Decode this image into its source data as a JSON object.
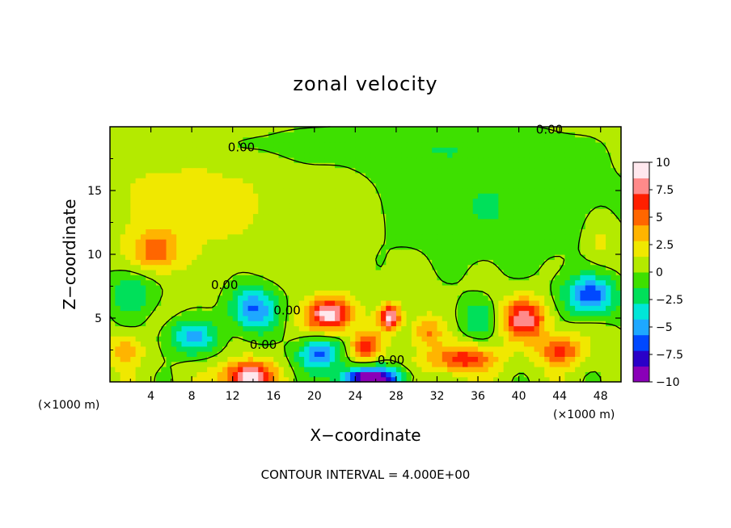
{
  "chart_data": {
    "type": "heatmap",
    "title": "zonal velocity",
    "xlabel": "X−coordinate",
    "ylabel": "Z−coordinate",
    "xunit_left": "(×1000 m)",
    "xunit_right": "(×1000 m)",
    "xlim": [
      0,
      50
    ],
    "ylim": [
      0,
      20
    ],
    "xticks": [
      4,
      8,
      12,
      16,
      20,
      24,
      28,
      32,
      36,
      40,
      44,
      48
    ],
    "xtick_labels": [
      "4",
      "8",
      "12",
      "16",
      "20",
      "24",
      "28",
      "32",
      "36",
      "40",
      "44",
      "48"
    ],
    "yticks": [
      5,
      10,
      15
    ],
    "ytick_labels": [
      "5",
      "10",
      "15"
    ],
    "colorbar": {
      "min": -10,
      "max": 10,
      "ticks": [
        10,
        7.5,
        5,
        2.5,
        0,
        -2.5,
        -5,
        -7.5,
        -10
      ],
      "tick_labels": [
        "10",
        "7.5",
        "5",
        "2.5",
        "0",
        "−2.5",
        "−5",
        "−7.5",
        "−10"
      ],
      "colors": [
        "#8a00b8",
        "#2a00c8",
        "#0048ff",
        "#1ea8ff",
        "#00e6d8",
        "#00e05a",
        "#3ee000",
        "#b4ea00",
        "#f0e800",
        "#ffb400",
        "#ff6600",
        "#ff1f00",
        "#ff8a8a",
        "#ffe8ee"
      ]
    },
    "contour_labels": [
      "0.00",
      "0.00",
      "0.00",
      "0.00",
      "0.00",
      "0.00"
    ],
    "contour_interval": 4,
    "footnote": "CONTOUR INTERVAL = 4.000E+00",
    "blobs": [
      {
        "x": 4.5,
        "z": 10.3,
        "v": 4.5,
        "sx": 2.2,
        "sz": 1.6
      },
      {
        "x": 8,
        "z": 14,
        "v": 1.4,
        "sx": 10,
        "sz": 4
      },
      {
        "x": 2,
        "z": 7,
        "v": -3.5,
        "sx": 2.4,
        "sz": 1.8
      },
      {
        "x": 14,
        "z": 5.8,
        "v": -6.5,
        "sx": 2.3,
        "sz": 1.8
      },
      {
        "x": 8,
        "z": 3.5,
        "v": -5,
        "sx": 2.6,
        "sz": 1.4
      },
      {
        "x": 13.5,
        "z": 0.4,
        "v": 9.5,
        "sx": 2.4,
        "sz": 1.2
      },
      {
        "x": 21.5,
        "z": 5.3,
        "v": 9,
        "sx": 2.2,
        "sz": 1.3
      },
      {
        "x": 27.4,
        "z": 5.1,
        "v": 8.5,
        "sx": 1,
        "sz": 1
      },
      {
        "x": 25,
        "z": 2.8,
        "v": 6,
        "sx": 1.5,
        "sz": 1.1
      },
      {
        "x": 20.5,
        "z": 2.2,
        "v": -6.5,
        "sx": 2.2,
        "sz": 1.3
      },
      {
        "x": 25.5,
        "z": 0.3,
        "v": -11,
        "sx": 3,
        "sz": 0.9
      },
      {
        "x": 34.5,
        "z": 1.8,
        "v": 6,
        "sx": 3.2,
        "sz": 1.1
      },
      {
        "x": 40.5,
        "z": 5,
        "v": 7.5,
        "sx": 2.2,
        "sz": 1.6
      },
      {
        "x": 44,
        "z": 2.5,
        "v": 5.5,
        "sx": 2.2,
        "sz": 1.2
      },
      {
        "x": 47,
        "z": 6.8,
        "v": -7,
        "sx": 2.6,
        "sz": 1.6
      },
      {
        "x": 36,
        "z": 5,
        "v": -3,
        "sx": 2,
        "sz": 1.5
      },
      {
        "x": 38,
        "z": 14,
        "v": -2,
        "sx": 12,
        "sz": 5
      },
      {
        "x": 25,
        "z": 18.5,
        "v": -1.6,
        "sx": 15,
        "sz": 1.5
      },
      {
        "x": 48,
        "z": 11,
        "v": 1.8,
        "sx": 1.6,
        "sz": 2
      },
      {
        "x": 1.5,
        "z": 2.5,
        "v": 3.5,
        "sx": 1.6,
        "sz": 1.2
      },
      {
        "x": 31,
        "z": 4,
        "v": 4,
        "sx": 1.5,
        "sz": 1.2
      }
    ]
  }
}
